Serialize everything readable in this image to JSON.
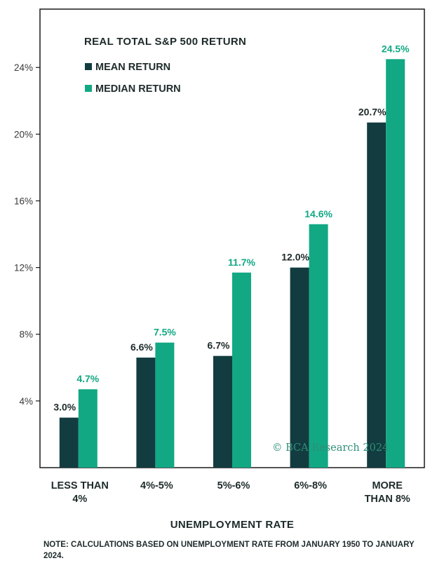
{
  "chart_data": {
    "type": "bar",
    "title": "REAL TOTAL S&P 500  RETURN",
    "categories": [
      [
        "LESS THAN",
        "4%"
      ],
      [
        "4%-5%"
      ],
      [
        "5%-6%"
      ],
      [
        "6%-8%"
      ],
      [
        "MORE",
        "THAN 8%"
      ]
    ],
    "series": [
      {
        "name": "MEAN RETURN",
        "values": [
          3.0,
          6.6,
          6.7,
          12.0,
          20.7
        ],
        "labels": [
          "3.0%",
          "6.6%",
          "6.7%",
          "12.0%",
          "20.7%"
        ],
        "color": "#123c40",
        "label_color": "#1e2a2a"
      },
      {
        "name": "MEDIAN RETURN",
        "values": [
          4.7,
          7.5,
          11.7,
          14.6,
          24.5
        ],
        "labels": [
          "4.7%",
          "7.5%",
          "11.7%",
          "14.6%",
          "24.5%"
        ],
        "color": "#12a884",
        "label_color": "#12a884"
      }
    ],
    "xlabel": "UNEMPLOYMENT RATE",
    "ylabel": "",
    "ylim": [
      0,
      27.5
    ],
    "yticks": [
      4,
      8,
      12,
      16,
      20,
      24
    ],
    "ytick_labels": [
      "4%",
      "8%",
      "12%",
      "16%",
      "20%",
      "24%"
    ],
    "legend_position": "top-left",
    "grid": false
  },
  "watermark": "© BCA Research 2024",
  "note": "NOTE: CALCULATIONS BASED ON UNEMPLOYMENT RATE FROM JANUARY 1950 TO JANUARY 2024."
}
